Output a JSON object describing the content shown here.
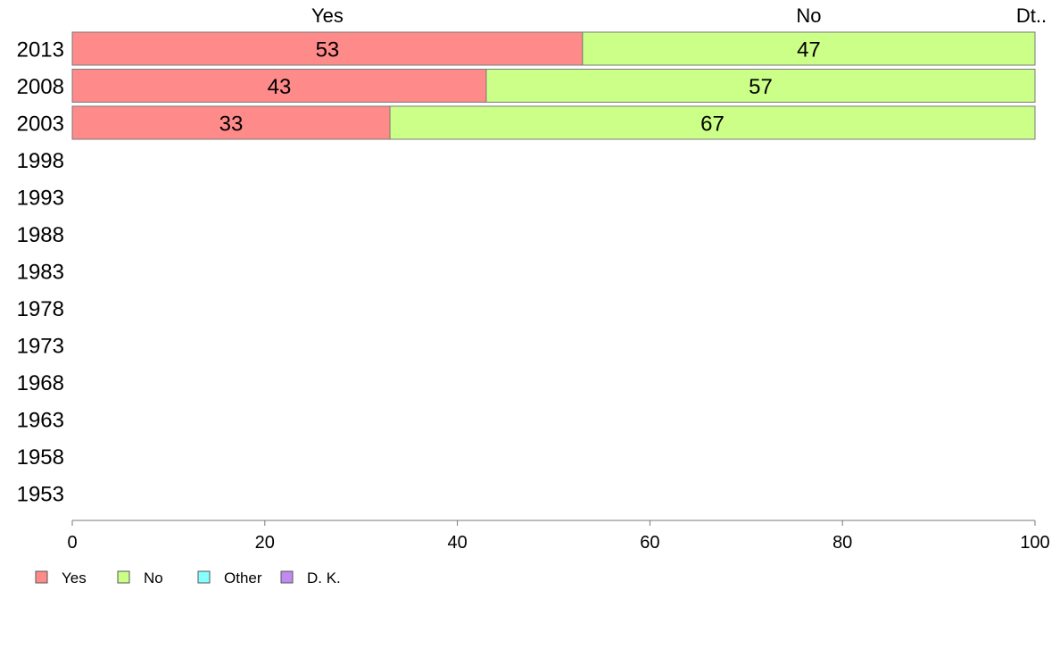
{
  "chart_data": {
    "type": "bar",
    "orientation": "horizontal",
    "stacked": true,
    "categories": [
      "2013",
      "2008",
      "2003",
      "1998",
      "1993",
      "1988",
      "1983",
      "1978",
      "1973",
      "1968",
      "1963",
      "1958",
      "1953"
    ],
    "series": [
      {
        "name": "Yes",
        "color": "#ff8a8a",
        "values": [
          53,
          43,
          33,
          null,
          null,
          null,
          null,
          null,
          null,
          null,
          null,
          null,
          null
        ]
      },
      {
        "name": "No",
        "color": "#ccff88",
        "values": [
          47,
          57,
          67,
          null,
          null,
          null,
          null,
          null,
          null,
          null,
          null,
          null,
          null
        ]
      },
      {
        "name": "Other",
        "color": "#88ffff",
        "values": [
          null,
          null,
          null,
          null,
          null,
          null,
          null,
          null,
          null,
          null,
          null,
          null,
          null
        ]
      },
      {
        "name": "D. K.",
        "color": "#c08af0",
        "values": [
          null,
          null,
          null,
          null,
          null,
          null,
          null,
          null,
          null,
          null,
          null,
          null,
          null
        ]
      }
    ],
    "top_labels": [
      "Yes",
      "No",
      "Dt.."
    ],
    "xlim": [
      0,
      100
    ],
    "xticks": [
      "0",
      "20",
      "40",
      "60",
      "80",
      "100"
    ],
    "xlabel": "",
    "ylabel": "",
    "title": "",
    "grid": false,
    "legend_position": "bottom-left"
  }
}
